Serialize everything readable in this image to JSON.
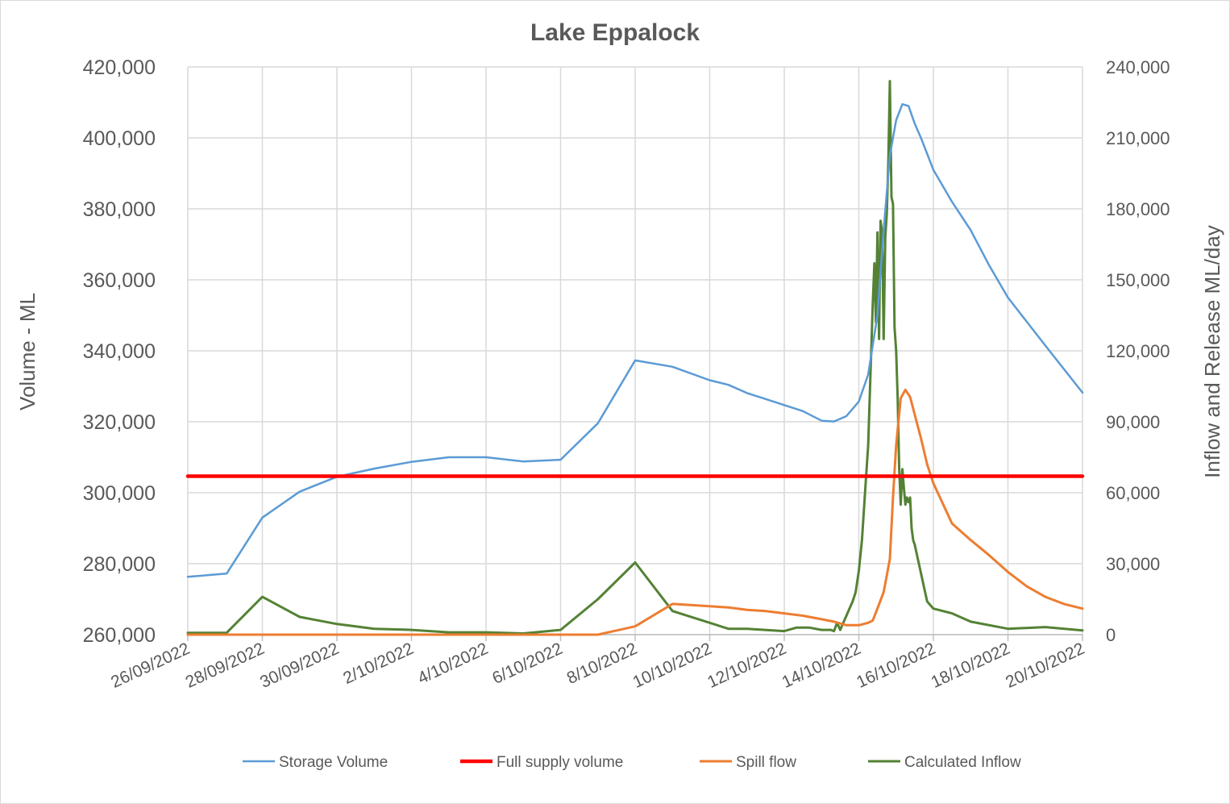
{
  "chart_data": {
    "type": "line",
    "title": "Lake Eppalock",
    "ylabel": "Volume - ML",
    "y2label": "Inflow and Release ML/day",
    "xlabel": "",
    "x_range": [
      "2022-09-26",
      "2022-10-20"
    ],
    "x_ticks": [
      "2022-09-26",
      "2022-09-28",
      "2022-09-30",
      "2022-10-02",
      "2022-10-04",
      "2022-10-06",
      "2022-10-08",
      "2022-10-10",
      "2022-10-12",
      "2022-10-14",
      "2022-10-16",
      "2022-10-18",
      "2022-10-20"
    ],
    "x_tick_labels": [
      "26/09/2022",
      "28/09/2022",
      "30/09/2022",
      "2/10/2022",
      "4/10/2022",
      "6/10/2022",
      "8/10/2022",
      "10/10/2022",
      "12/10/2022",
      "14/10/2022",
      "16/10/2022",
      "18/10/2022",
      "20/10/2022"
    ],
    "ylim": [
      260000,
      420000
    ],
    "y_ticks": [
      260000,
      280000,
      300000,
      320000,
      340000,
      360000,
      380000,
      400000,
      420000
    ],
    "y_tick_labels": [
      "260,000",
      "280,000",
      "300,000",
      "320,000",
      "340,000",
      "360,000",
      "380,000",
      "400,000",
      "420,000"
    ],
    "y2lim": [
      0,
      240000
    ],
    "y2_ticks": [
      0,
      30000,
      60000,
      90000,
      120000,
      150000,
      180000,
      210000,
      240000
    ],
    "y2_tick_labels": [
      "0",
      "30,000",
      "60,000",
      "90,000",
      "120,000",
      "150,000",
      "180,000",
      "210,000",
      "240,000"
    ],
    "grid": true,
    "legend_position": "bottom",
    "series": [
      {
        "name": "Storage Volume",
        "axis": "left",
        "color": "#5b9bd5",
        "width": 2.5,
        "x": [
          "2022-09-26 00:00",
          "2022-09-27 01:00",
          "2022-09-28 00:00",
          "2022-09-29 00:00",
          "2022-09-30 00:00",
          "2022-10-01 00:00",
          "2022-10-02 00:00",
          "2022-10-03 00:00",
          "2022-10-04 00:00",
          "2022-10-05 00:00",
          "2022-10-06 00:00",
          "2022-10-07 00:00",
          "2022-10-08 00:00",
          "2022-10-09 00:00",
          "2022-10-10 00:00",
          "2022-10-10 12:00",
          "2022-10-11 00:00",
          "2022-10-11 12:00",
          "2022-10-12 00:00",
          "2022-10-12 12:00",
          "2022-10-13 00:00",
          "2022-10-13 08:00",
          "2022-10-13 16:00",
          "2022-10-14 00:00",
          "2022-10-14 06:00",
          "2022-10-14 12:00",
          "2022-10-14 16:00",
          "2022-10-14 20:00",
          "2022-10-15 00:00",
          "2022-10-15 04:00",
          "2022-10-15 08:00",
          "2022-10-15 12:00",
          "2022-10-15 16:00",
          "2022-10-16 00:00",
          "2022-10-16 12:00",
          "2022-10-17 00:00",
          "2022-10-17 12:00",
          "2022-10-18 00:00",
          "2022-10-19 00:00",
          "2022-10-20 00:00"
        ],
        "y": [
          276300,
          277200,
          293000,
          300300,
          304500,
          306800,
          308700,
          310000,
          310000,
          308800,
          309300,
          319600,
          337300,
          335500,
          331700,
          330400,
          328100,
          326400,
          324700,
          323000,
          320300,
          320100,
          321600,
          325700,
          333300,
          350000,
          374000,
          395000,
          405000,
          409500,
          409000,
          404000,
          400000,
          391000,
          382000,
          374000,
          364000,
          355000,
          341500,
          328200
        ]
      },
      {
        "name": "Full supply volume",
        "axis": "left",
        "color": "#ff0000",
        "width": 4.5,
        "x": [
          "2022-09-26 00:00",
          "2022-10-20 00:00"
        ],
        "y": [
          304651,
          304651
        ]
      },
      {
        "name": "Spill flow",
        "axis": "right",
        "color": "#ed7d31",
        "width": 3,
        "x": [
          "2022-09-26 00:00",
          "2022-09-28 00:00",
          "2022-09-30 00:00",
          "2022-10-02 00:00",
          "2022-10-04 00:00",
          "2022-10-06 00:00",
          "2022-10-07 00:00",
          "2022-10-08 00:00",
          "2022-10-09 00:00",
          "2022-10-10 00:00",
          "2022-10-10 12:00",
          "2022-10-11 00:00",
          "2022-10-11 12:00",
          "2022-10-12 00:00",
          "2022-10-12 12:00",
          "2022-10-13 00:00",
          "2022-10-13 08:00",
          "2022-10-13 16:00",
          "2022-10-14 00:00",
          "2022-10-14 06:00",
          "2022-10-14 09:00",
          "2022-10-14 12:00",
          "2022-10-14 16:00",
          "2022-10-14 18:00",
          "2022-10-14 20:00",
          "2022-10-14 22:00",
          "2022-10-15 00:00",
          "2022-10-15 03:00",
          "2022-10-15 06:00",
          "2022-10-15 09:00",
          "2022-10-15 12:00",
          "2022-10-15 16:00",
          "2022-10-15 20:00",
          "2022-10-16 00:00",
          "2022-10-16 12:00",
          "2022-10-17 00:00",
          "2022-10-17 12:00",
          "2022-10-18 00:00",
          "2022-10-18 12:00",
          "2022-10-19 00:00",
          "2022-10-19 12:00",
          "2022-10-20 00:00"
        ],
        "y": [
          0,
          0,
          0,
          0,
          0,
          0,
          0,
          3500,
          13000,
          12000,
          11500,
          10500,
          10000,
          9000,
          8000,
          6500,
          5500,
          4000,
          4000,
          5000,
          6000,
          11000,
          18000,
          25000,
          32000,
          58000,
          80000,
          100000,
          103500,
          100500,
          93000,
          83000,
          72000,
          64000,
          47000,
          40000,
          33500,
          26500,
          20500,
          16000,
          13000,
          11000
        ]
      },
      {
        "name": "Calculated Inflow",
        "axis": "right",
        "color": "#548235",
        "width": 3,
        "x": [
          "2022-09-26 00:00",
          "2022-09-27 01:00",
          "2022-09-28 00:00",
          "2022-09-29 00:00",
          "2022-09-30 00:00",
          "2022-10-01 00:00",
          "2022-10-02 00:00",
          "2022-10-03 00:00",
          "2022-10-04 00:00",
          "2022-10-05 00:00",
          "2022-10-06 00:00",
          "2022-10-07 00:00",
          "2022-10-08 00:00",
          "2022-10-09 00:00",
          "2022-10-10 00:00",
          "2022-10-10 12:00",
          "2022-10-11 00:00",
          "2022-10-12 00:00",
          "2022-10-12 08:00",
          "2022-10-12 16:00",
          "2022-10-13 00:00",
          "2022-10-13 06:00",
          "2022-10-13 08:00",
          "2022-10-13 10:00",
          "2022-10-13 12:00",
          "2022-10-13 14:00",
          "2022-10-13 16:00",
          "2022-10-13 18:00",
          "2022-10-13 20:00",
          "2022-10-13 22:00",
          "2022-10-14 00:00",
          "2022-10-14 02:00",
          "2022-10-14 04:00",
          "2022-10-14 06:00",
          "2022-10-14 07:00",
          "2022-10-14 08:00",
          "2022-10-14 09:00",
          "2022-10-14 10:00",
          "2022-10-14 11:00",
          "2022-10-14 12:00",
          "2022-10-14 13:00",
          "2022-10-14 14:00",
          "2022-10-14 15:00",
          "2022-10-14 16:00",
          "2022-10-14 17:00",
          "2022-10-14 18:00",
          "2022-10-14 19:00",
          "2022-10-14 20:00",
          "2022-10-14 21:00",
          "2022-10-14 22:00",
          "2022-10-14 23:00",
          "2022-10-15 00:00",
          "2022-10-15 01:00",
          "2022-10-15 02:00",
          "2022-10-15 03:00",
          "2022-10-15 04:00",
          "2022-10-15 05:00",
          "2022-10-15 06:00",
          "2022-10-15 07:00",
          "2022-10-15 08:00",
          "2022-10-15 09:00",
          "2022-10-15 10:00",
          "2022-10-15 11:00",
          "2022-10-15 12:00",
          "2022-10-15 14:00",
          "2022-10-15 16:00",
          "2022-10-15 18:00",
          "2022-10-15 20:00",
          "2022-10-16 00:00",
          "2022-10-16 12:00",
          "2022-10-17 00:00",
          "2022-10-18 00:00",
          "2022-10-19 00:00",
          "2022-10-20 00:00"
        ],
        "y": [
          800,
          800,
          16000,
          7500,
          4500,
          2500,
          2000,
          1000,
          1000,
          500,
          2000,
          15000,
          30500,
          10000,
          5000,
          2500,
          2500,
          1500,
          3000,
          3000,
          2000,
          2000,
          1500,
          5000,
          2000,
          5000,
          8000,
          11000,
          14000,
          18000,
          27000,
          40000,
          60000,
          80000,
          100000,
          120000,
          140000,
          157000,
          132000,
          170000,
          125000,
          175000,
          170000,
          125000,
          168000,
          178000,
          200000,
          234000,
          185000,
          182000,
          130000,
          120000,
          100000,
          70000,
          55000,
          70000,
          62000,
          55000,
          58000,
          56000,
          58000,
          45000,
          40000,
          38000,
          32000,
          26000,
          20000,
          14000,
          11000,
          9000,
          5500,
          2500,
          3200,
          1800
        ]
      }
    ]
  }
}
